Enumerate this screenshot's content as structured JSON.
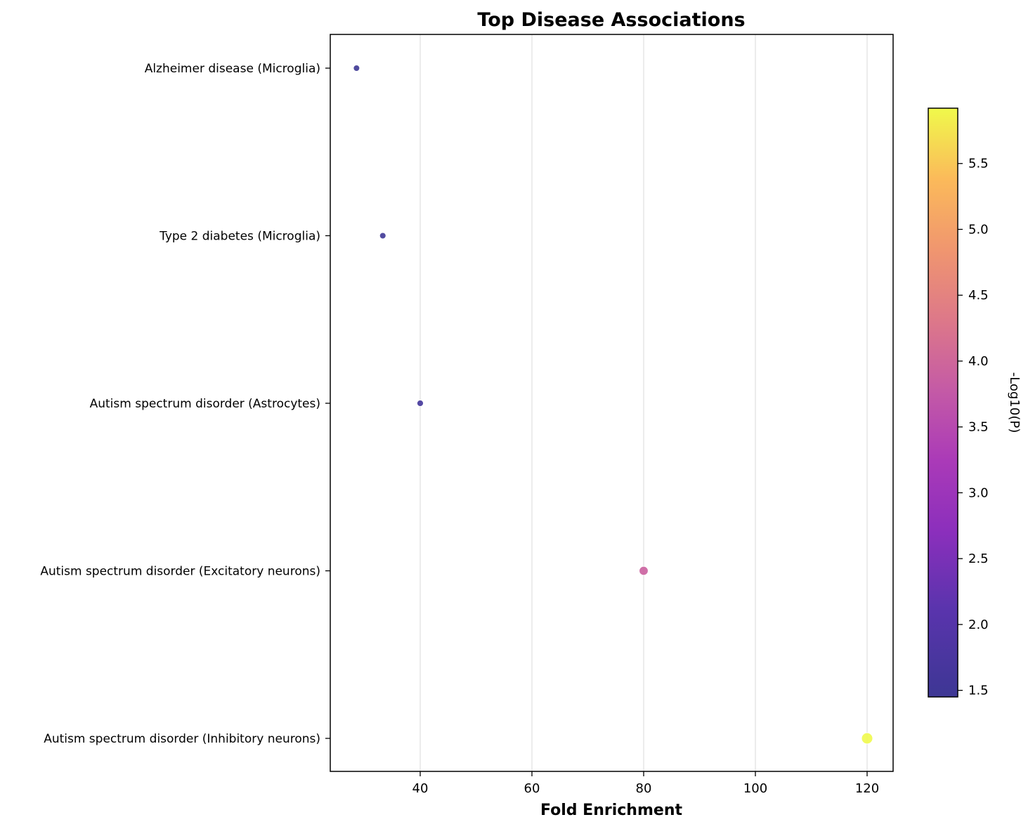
{
  "chart_data": {
    "type": "scatter",
    "title": "Top Disease Associations",
    "xlabel": "Fold Enrichment",
    "ylabel": "",
    "xlim": [
      24,
      125
    ],
    "xticks": [
      40,
      60,
      80,
      100,
      120
    ],
    "grid": "vertical",
    "colormap": "plasma",
    "colorbar": {
      "label": "-Log10(P)",
      "min": 1.45,
      "max": 5.92,
      "ticks": [
        1.5,
        2.0,
        2.5,
        3.0,
        3.5,
        4.0,
        4.5,
        5.0,
        5.5
      ]
    },
    "categories": [
      "Alzheimer disease (Microglia)",
      "Type 2 diabetes (Microglia)",
      "Autism spectrum disorder (Astrocytes)",
      "Autism spectrum disorder (Excitatory neurons)",
      "Autism spectrum disorder (Inhibitory neurons)"
    ],
    "points": [
      {
        "category": "Alzheimer disease (Microglia)",
        "x": 28.6,
        "neg_log10_p": 1.45
      },
      {
        "category": "Type 2 diabetes (Microglia)",
        "x": 33.3,
        "neg_log10_p": 1.5
      },
      {
        "category": "Autism spectrum disorder (Astrocytes)",
        "x": 40.0,
        "neg_log10_p": 1.6
      },
      {
        "category": "Autism spectrum disorder (Excitatory neurons)",
        "x": 80.0,
        "neg_log10_p": 3.9
      },
      {
        "category": "Autism spectrum disorder (Inhibitory neurons)",
        "x": 120.0,
        "neg_log10_p": 5.92
      }
    ]
  }
}
